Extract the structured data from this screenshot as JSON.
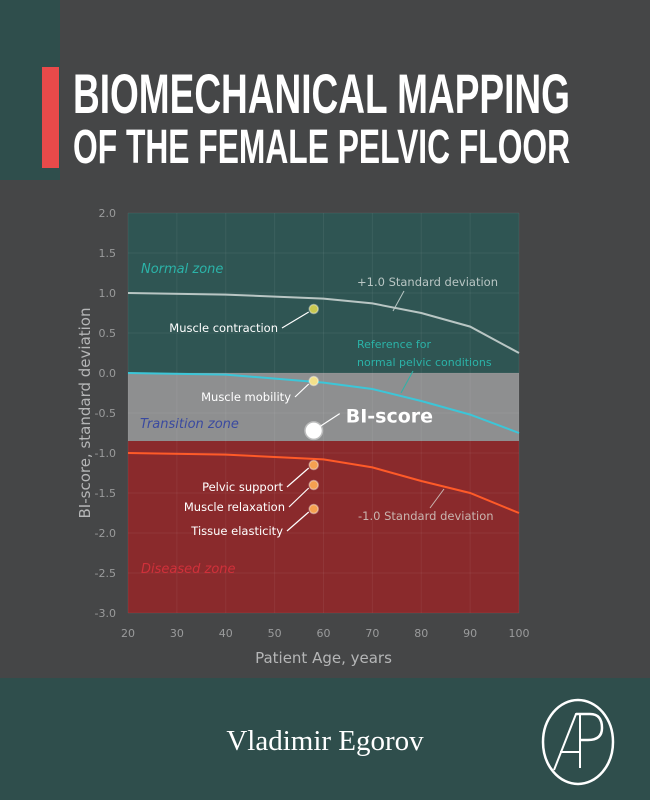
{
  "cover": {
    "title_line1": "BIOMECHANICAL MAPPING",
    "title_line2": "OF THE FEMALE PELVIC FLOOR",
    "author": "Vladimir Egorov",
    "publisher_logo_text": "AP",
    "colors": {
      "background": "#454647",
      "teal": "#2f4e4c",
      "accent_red": "#e84a4a"
    }
  },
  "chart_data": {
    "type": "line",
    "xlabel": "Patient Age, years",
    "ylabel": "BI-score, standard deviation",
    "xlim": [
      20,
      100
    ],
    "ylim": [
      -3.0,
      2.0
    ],
    "xticks": [
      "20",
      "30",
      "40",
      "50",
      "60",
      "70",
      "80",
      "90",
      "100"
    ],
    "yticks": [
      "2.0",
      "1.5",
      "1.0",
      "0.5",
      "0.0",
      "-0.5",
      "-1.0",
      "-1.5",
      "-2.0",
      "-2.5",
      "-3.0"
    ],
    "grid": true,
    "zones": [
      {
        "name": "Normal zone",
        "from": 0.0,
        "to": 2.0,
        "color": "#2f5553",
        "label_color": "#2bb3a8"
      },
      {
        "name": "Transition zone",
        "from": -0.85,
        "to": 0.0,
        "color": "#8e8f90",
        "label_color": "#3a4aa0"
      },
      {
        "name": "Diseased zone",
        "from": -3.0,
        "to": -0.85,
        "color": "#8a2a2c",
        "label_color": "#d0303a"
      }
    ],
    "series": [
      {
        "name": "+1.0 Standard deviation",
        "color": "#b9c6c4",
        "x": [
          20,
          40,
          60,
          70,
          80,
          90,
          100
        ],
        "y": [
          1.0,
          0.98,
          0.93,
          0.87,
          0.75,
          0.58,
          0.25
        ]
      },
      {
        "name": "Reference for normal pelvic conditions",
        "color": "#3cc6d8",
        "x": [
          20,
          40,
          60,
          70,
          80,
          90,
          100
        ],
        "y": [
          0.0,
          -0.02,
          -0.12,
          -0.2,
          -0.35,
          -0.52,
          -0.75
        ]
      },
      {
        "name": "-1.0 Standard deviation",
        "color": "#ff5a28",
        "x": [
          20,
          40,
          60,
          70,
          80,
          90,
          100
        ],
        "y": [
          -1.0,
          -1.02,
          -1.08,
          -1.18,
          -1.35,
          -1.5,
          -1.75
        ]
      }
    ],
    "points": [
      {
        "label": "Muscle contraction",
        "x": 58,
        "y": 0.8,
        "color": "#c8c850"
      },
      {
        "label": "Muscle mobility",
        "x": 58,
        "y": -0.1,
        "color": "#f2e08a"
      },
      {
        "label": "BI-score",
        "x": 58,
        "y": -0.72,
        "color": "#ffffff"
      },
      {
        "label": "Pelvic support",
        "x": 58,
        "y": -1.15,
        "color": "#f5a050"
      },
      {
        "label": "Muscle relaxation",
        "x": 58,
        "y": -1.4,
        "color": "#f5a050"
      },
      {
        "label": "Tissue elasticity",
        "x": 58,
        "y": -1.7,
        "color": "#f5a050"
      }
    ],
    "annotations": [
      "+1.0 Standard deviation",
      "Reference for",
      "normal pelvic conditions",
      "-1.0 Standard deviation"
    ]
  }
}
